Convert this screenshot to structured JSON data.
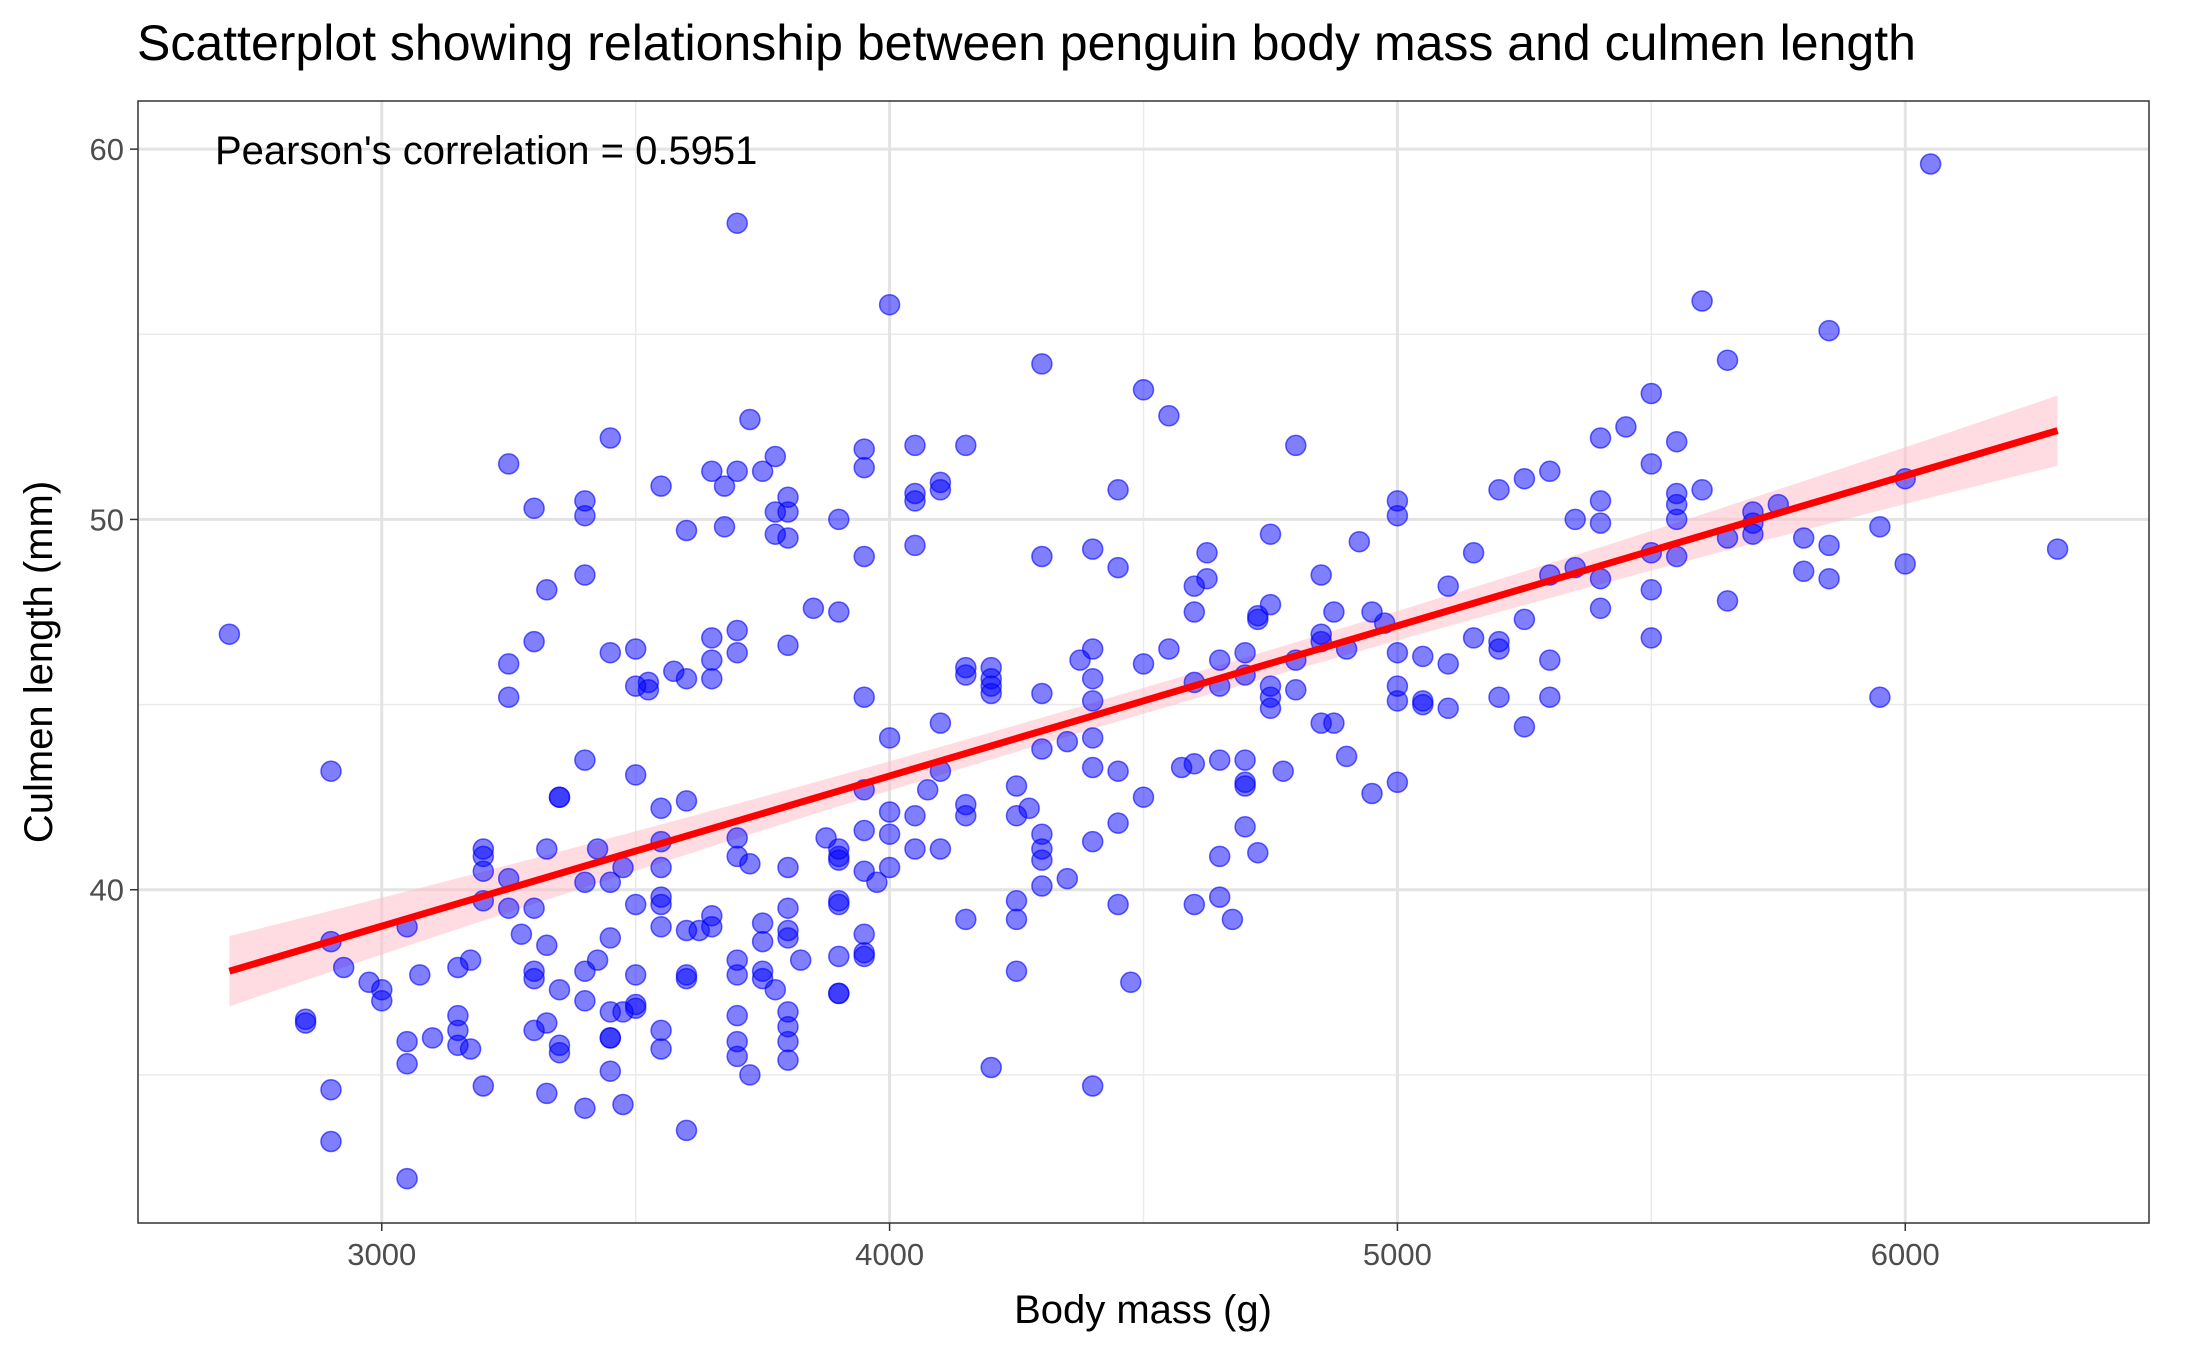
{
  "chart_data": {
    "type": "scatter",
    "title": "Scatterplot showing relationship between penguin body mass and culmen length",
    "xlabel": "Body mass (g)",
    "ylabel": "Culmen length (mm)",
    "xlim": [
      2520,
      6480
    ],
    "ylim": [
      31.0,
      61.3
    ],
    "x_ticks": [
      3000,
      4000,
      5000,
      6000
    ],
    "y_ticks": [
      40,
      50,
      60
    ],
    "grid": true,
    "point_color": "#0000ff",
    "annotation": "Pearson's correlation = 0.5951",
    "regression": {
      "x_start": 2700,
      "y_start": 37.8,
      "x_end": 6300,
      "y_end": 52.4,
      "ci_halfwidth_ends": 0.95,
      "ci_halfwidth_mid": 0.35,
      "line_color": "#ff0000",
      "band_color": "#ffc0cb"
    },
    "points": [
      [
        2700,
        46.9
      ],
      [
        2850,
        36.5
      ],
      [
        2850,
        36.4
      ],
      [
        2900,
        43.2
      ],
      [
        2900,
        38.6
      ],
      [
        2900,
        34.6
      ],
      [
        2900,
        33.2
      ],
      [
        2925,
        37.9
      ],
      [
        2975,
        37.5
      ],
      [
        3000,
        37.3
      ],
      [
        3000,
        37.0
      ],
      [
        3050,
        39.0
      ],
      [
        3050,
        35.9
      ],
      [
        3050,
        35.3
      ],
      [
        3050,
        32.2
      ],
      [
        3075,
        37.7
      ],
      [
        3100,
        36.0
      ],
      [
        3150,
        37.9
      ],
      [
        3150,
        36.6
      ],
      [
        3150,
        36.2
      ],
      [
        3150,
        35.8
      ],
      [
        3175,
        38.1
      ],
      [
        3175,
        35.7
      ],
      [
        3200,
        41.1
      ],
      [
        3200,
        40.9
      ],
      [
        3200,
        40.5
      ],
      [
        3200,
        39.7
      ],
      [
        3200,
        34.7
      ],
      [
        3250,
        51.5
      ],
      [
        3250,
        46.1
      ],
      [
        3250,
        45.2
      ],
      [
        3250,
        40.3
      ],
      [
        3250,
        39.5
      ],
      [
        3275,
        38.8
      ],
      [
        3300,
        50.3
      ],
      [
        3300,
        46.7
      ],
      [
        3300,
        39.5
      ],
      [
        3300,
        37.8
      ],
      [
        3300,
        37.6
      ],
      [
        3300,
        36.2
      ],
      [
        3325,
        48.1
      ],
      [
        3325,
        41.1
      ],
      [
        3325,
        38.5
      ],
      [
        3325,
        36.4
      ],
      [
        3325,
        34.5
      ],
      [
        3350,
        42.5
      ],
      [
        3350,
        42.5
      ],
      [
        3350,
        37.3
      ],
      [
        3350,
        35.8
      ],
      [
        3350,
        35.6
      ],
      [
        3400,
        50.5
      ],
      [
        3400,
        50.1
      ],
      [
        3400,
        48.5
      ],
      [
        3400,
        43.5
      ],
      [
        3400,
        40.2
      ],
      [
        3400,
        37.8
      ],
      [
        3400,
        37.0
      ],
      [
        3400,
        34.1
      ],
      [
        3425,
        41.1
      ],
      [
        3425,
        38.1
      ],
      [
        3450,
        52.2
      ],
      [
        3450,
        46.4
      ],
      [
        3450,
        40.2
      ],
      [
        3450,
        38.7
      ],
      [
        3450,
        36.7
      ],
      [
        3450,
        36.0
      ],
      [
        3450,
        36.0
      ],
      [
        3450,
        35.1
      ],
      [
        3475,
        40.6
      ],
      [
        3475,
        36.7
      ],
      [
        3475,
        34.2
      ],
      [
        3500,
        46.5
      ],
      [
        3500,
        45.5
      ],
      [
        3500,
        43.1
      ],
      [
        3500,
        39.6
      ],
      [
        3500,
        37.7
      ],
      [
        3500,
        36.9
      ],
      [
        3500,
        36.8
      ],
      [
        3525,
        45.4
      ],
      [
        3525,
        45.6
      ],
      [
        3550,
        50.9
      ],
      [
        3550,
        42.2
      ],
      [
        3550,
        41.3
      ],
      [
        3550,
        40.6
      ],
      [
        3550,
        39.8
      ],
      [
        3550,
        39.6
      ],
      [
        3550,
        39.0
      ],
      [
        3550,
        36.2
      ],
      [
        3550,
        35.7
      ],
      [
        3575,
        45.9
      ],
      [
        3600,
        49.7
      ],
      [
        3600,
        45.7
      ],
      [
        3600,
        42.4
      ],
      [
        3600,
        38.9
      ],
      [
        3600,
        37.7
      ],
      [
        3600,
        37.6
      ],
      [
        3600,
        33.5
      ],
      [
        3625,
        38.9
      ],
      [
        3650,
        51.3
      ],
      [
        3650,
        46.8
      ],
      [
        3650,
        46.2
      ],
      [
        3650,
        45.7
      ],
      [
        3650,
        39.3
      ],
      [
        3650,
        39.0
      ],
      [
        3675,
        49.8
      ],
      [
        3675,
        50.9
      ],
      [
        3700,
        58.0
      ],
      [
        3700,
        51.3
      ],
      [
        3700,
        47.0
      ],
      [
        3700,
        46.4
      ],
      [
        3700,
        41.4
      ],
      [
        3700,
        40.9
      ],
      [
        3700,
        38.1
      ],
      [
        3700,
        37.7
      ],
      [
        3700,
        36.6
      ],
      [
        3700,
        35.9
      ],
      [
        3700,
        35.5
      ],
      [
        3725,
        52.7
      ],
      [
        3725,
        40.7
      ],
      [
        3725,
        35.0
      ],
      [
        3750,
        51.3
      ],
      [
        3750,
        39.1
      ],
      [
        3750,
        38.6
      ],
      [
        3750,
        37.8
      ],
      [
        3750,
        37.6
      ],
      [
        3775,
        51.7
      ],
      [
        3775,
        50.2
      ],
      [
        3775,
        49.6
      ],
      [
        3775,
        37.3
      ],
      [
        3800,
        50.6
      ],
      [
        3800,
        50.2
      ],
      [
        3800,
        49.5
      ],
      [
        3800,
        46.6
      ],
      [
        3800,
        40.6
      ],
      [
        3800,
        39.5
      ],
      [
        3800,
        38.9
      ],
      [
        3800,
        38.7
      ],
      [
        3800,
        36.7
      ],
      [
        3800,
        36.3
      ],
      [
        3800,
        35.9
      ],
      [
        3800,
        35.4
      ],
      [
        3825,
        38.1
      ],
      [
        3850,
        47.6
      ],
      [
        3875,
        41.4
      ],
      [
        3900,
        50.0
      ],
      [
        3900,
        47.5
      ],
      [
        3900,
        41.1
      ],
      [
        3900,
        40.9
      ],
      [
        3900,
        40.8
      ],
      [
        3900,
        39.7
      ],
      [
        3900,
        39.6
      ],
      [
        3900,
        38.2
      ],
      [
        3900,
        37.2
      ],
      [
        3900,
        37.2
      ],
      [
        3950,
        51.9
      ],
      [
        3950,
        51.4
      ],
      [
        3950,
        49.0
      ],
      [
        3950,
        45.2
      ],
      [
        3950,
        42.7
      ],
      [
        3950,
        41.6
      ],
      [
        3950,
        40.5
      ],
      [
        3950,
        38.8
      ],
      [
        3950,
        38.3
      ],
      [
        3950,
        38.2
      ],
      [
        3975,
        40.2
      ],
      [
        4000,
        55.8
      ],
      [
        4000,
        44.1
      ],
      [
        4000,
        42.1
      ],
      [
        4000,
        41.5
      ],
      [
        4000,
        40.6
      ],
      [
        4050,
        52.0
      ],
      [
        4050,
        50.7
      ],
      [
        4050,
        50.5
      ],
      [
        4050,
        49.3
      ],
      [
        4050,
        42.0
      ],
      [
        4050,
        41.1
      ],
      [
        4075,
        42.7
      ],
      [
        4100,
        51.0
      ],
      [
        4100,
        50.8
      ],
      [
        4100,
        44.5
      ],
      [
        4100,
        43.2
      ],
      [
        4100,
        41.1
      ],
      [
        4150,
        52.0
      ],
      [
        4150,
        46.0
      ],
      [
        4150,
        45.8
      ],
      [
        4150,
        42.3
      ],
      [
        4150,
        42.0
      ],
      [
        4150,
        39.2
      ],
      [
        4200,
        46.0
      ],
      [
        4200,
        45.7
      ],
      [
        4200,
        45.5
      ],
      [
        4200,
        45.3
      ],
      [
        4200,
        35.2
      ],
      [
        4250,
        42.8
      ],
      [
        4250,
        42.0
      ],
      [
        4250,
        39.7
      ],
      [
        4250,
        39.2
      ],
      [
        4250,
        37.8
      ],
      [
        4275,
        42.2
      ],
      [
        4300,
        54.2
      ],
      [
        4300,
        49.0
      ],
      [
        4300,
        45.3
      ],
      [
        4300,
        43.8
      ],
      [
        4300,
        41.5
      ],
      [
        4300,
        41.1
      ],
      [
        4300,
        40.8
      ],
      [
        4300,
        40.1
      ],
      [
        4350,
        44.0
      ],
      [
        4350,
        40.3
      ],
      [
        4375,
        46.2
      ],
      [
        4400,
        49.2
      ],
      [
        4400,
        46.5
      ],
      [
        4400,
        45.7
      ],
      [
        4400,
        45.1
      ],
      [
        4400,
        44.1
      ],
      [
        4400,
        43.3
      ],
      [
        4400,
        41.3
      ],
      [
        4400,
        34.7
      ],
      [
        4450,
        50.8
      ],
      [
        4450,
        48.7
      ],
      [
        4450,
        43.2
      ],
      [
        4450,
        41.8
      ],
      [
        4450,
        39.6
      ],
      [
        4475,
        37.5
      ],
      [
        4500,
        53.5
      ],
      [
        4500,
        46.1
      ],
      [
        4500,
        42.5
      ],
      [
        4550,
        52.8
      ],
      [
        4550,
        46.5
      ],
      [
        4575,
        43.3
      ],
      [
        4600,
        48.2
      ],
      [
        4600,
        47.5
      ],
      [
        4600,
        45.6
      ],
      [
        4600,
        43.4
      ],
      [
        4600,
        39.6
      ],
      [
        4625,
        49.1
      ],
      [
        4625,
        48.4
      ],
      [
        4650,
        46.2
      ],
      [
        4650,
        45.5
      ],
      [
        4650,
        43.5
      ],
      [
        4650,
        40.9
      ],
      [
        4650,
        39.8
      ],
      [
        4675,
        39.2
      ],
      [
        4700,
        46.4
      ],
      [
        4700,
        45.8
      ],
      [
        4700,
        43.5
      ],
      [
        4700,
        42.9
      ],
      [
        4700,
        42.8
      ],
      [
        4700,
        41.7
      ],
      [
        4725,
        47.3
      ],
      [
        4725,
        47.4
      ],
      [
        4725,
        41.0
      ],
      [
        4750,
        49.6
      ],
      [
        4750,
        47.7
      ],
      [
        4750,
        45.5
      ],
      [
        4750,
        45.2
      ],
      [
        4750,
        44.9
      ],
      [
        4775,
        43.2
      ],
      [
        4800,
        52.0
      ],
      [
        4800,
        46.2
      ],
      [
        4800,
        45.4
      ],
      [
        4850,
        48.5
      ],
      [
        4850,
        46.9
      ],
      [
        4850,
        46.7
      ],
      [
        4850,
        44.5
      ],
      [
        4875,
        47.5
      ],
      [
        4875,
        44.5
      ],
      [
        4900,
        46.5
      ],
      [
        4900,
        43.6
      ],
      [
        4925,
        49.4
      ],
      [
        4950,
        47.5
      ],
      [
        4950,
        42.6
      ],
      [
        4975,
        47.2
      ],
      [
        5000,
        50.5
      ],
      [
        5000,
        50.1
      ],
      [
        5000,
        46.4
      ],
      [
        5000,
        45.5
      ],
      [
        5000,
        45.1
      ],
      [
        5000,
        42.9
      ],
      [
        5050,
        46.3
      ],
      [
        5050,
        45.1
      ],
      [
        5050,
        45.0
      ],
      [
        5100,
        48.2
      ],
      [
        5100,
        46.1
      ],
      [
        5100,
        44.9
      ],
      [
        5150,
        49.1
      ],
      [
        5150,
        46.8
      ],
      [
        5200,
        50.8
      ],
      [
        5200,
        46.7
      ],
      [
        5200,
        46.5
      ],
      [
        5200,
        45.2
      ],
      [
        5250,
        51.1
      ],
      [
        5250,
        47.3
      ],
      [
        5250,
        44.4
      ],
      [
        5300,
        51.3
      ],
      [
        5300,
        48.5
      ],
      [
        5300,
        46.2
      ],
      [
        5300,
        45.2
      ],
      [
        5350,
        50.0
      ],
      [
        5350,
        48.7
      ],
      [
        5400,
        52.2
      ],
      [
        5400,
        50.5
      ],
      [
        5400,
        49.9
      ],
      [
        5400,
        48.4
      ],
      [
        5400,
        47.6
      ],
      [
        5450,
        52.5
      ],
      [
        5500,
        53.4
      ],
      [
        5500,
        51.5
      ],
      [
        5500,
        49.1
      ],
      [
        5500,
        48.1
      ],
      [
        5500,
        46.8
      ],
      [
        5550,
        52.1
      ],
      [
        5550,
        50.7
      ],
      [
        5550,
        50.4
      ],
      [
        5550,
        50.0
      ],
      [
        5550,
        49.0
      ],
      [
        5600,
        55.9
      ],
      [
        5600,
        50.8
      ],
      [
        5650,
        54.3
      ],
      [
        5650,
        49.5
      ],
      [
        5650,
        47.8
      ],
      [
        5700,
        50.2
      ],
      [
        5700,
        49.9
      ],
      [
        5700,
        49.6
      ],
      [
        5750,
        50.4
      ],
      [
        5800,
        49.5
      ],
      [
        5800,
        48.6
      ],
      [
        5850,
        55.1
      ],
      [
        5850,
        49.3
      ],
      [
        5850,
        48.4
      ],
      [
        5950,
        49.8
      ],
      [
        5950,
        45.2
      ],
      [
        6000,
        51.1
      ],
      [
        6000,
        48.8
      ],
      [
        6050,
        59.6
      ],
      [
        6300,
        49.2
      ]
    ]
  }
}
